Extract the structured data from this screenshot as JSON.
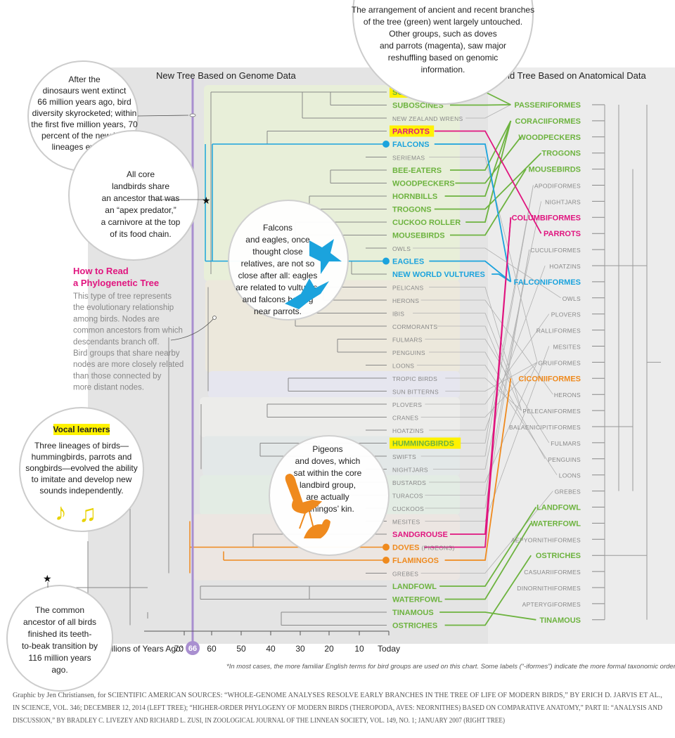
{
  "headers": {
    "new_tree": "New Tree Based on Genome Data",
    "old_tree": "Old Tree Based on Anatomical Data"
  },
  "callouts": {
    "top": [
      "The arrangement of ancient and recent branches",
      "of the tree (green) went largely untouched.",
      "Other groups, such as doves",
      "and parrots (magenta), saw major",
      "reshuffling based on genomic",
      "information."
    ],
    "dinosaurs": [
      "After the",
      "dinosaurs went extinct",
      "66 million years ago, bird",
      "diversity skyrocketed; within",
      "the first five million years, 70",
      "percent of the new bird",
      "lineages evolved."
    ],
    "landbirds": [
      "All core",
      "landbirds share",
      "an ancestor that was",
      "an “apex predator,”",
      "a carnivore at the top",
      "of its food chain."
    ],
    "falcons": [
      "Falcons",
      "and eagles, once",
      "thought close",
      "relatives, are not so",
      "close after all: eagles",
      "are related to vultures,",
      "and falcons belong",
      "near parrots."
    ],
    "pigeons": [
      "Pigeons",
      "and doves, which",
      "sat within the core",
      "landbird group,",
      "are actually",
      "flamingos’ kin."
    ],
    "howto_title": [
      "How to Read",
      "a Phylogenetic Tree"
    ],
    "howto_body": [
      "This type of tree represents",
      "the evolutionary relationship",
      "among birds. Nodes are",
      "common ancestors from which",
      "descendants branch off.",
      "Bird groups that share nearby",
      "nodes are more closely related",
      "than those connected by",
      "more distant nodes."
    ],
    "vocal_title": "Vocal learners",
    "vocal_body": [
      "Three lineages of birds—",
      "hummingbirds, parrots and",
      "songbirds—evolved the ability",
      "to imitate and develop new",
      "sounds independently."
    ],
    "common": [
      "The common",
      "ancestor of all birds",
      "finished its teeth-",
      "to-beak transition by",
      "116 million years",
      "ago."
    ]
  },
  "axis": {
    "title": "Millions of Years Ago:",
    "ticks": [
      "70",
      "60",
      "50",
      "40",
      "30",
      "20",
      "10",
      "Today"
    ],
    "marker": "66"
  },
  "footnote": "*In most cases, the more familiar English terms for bird groups are used on this chart. Some labels (“-iformes”) indicate the more formal taxonomic order.",
  "credits": {
    "line1": "Graphic by Jen Christiansen, for SCIENTIFIC AMERICAN   SOURCES: “WHOLE-GENOME ANALYSES RESOLVE EARLY BRANCHES IN THE TREE OF LIFE OF MODERN BIRDS,” BY ERICH D. JARVIS ET AL.,",
    "line2": "IN SCIENCE, VOL. 346; DECEMBER 12, 2014 (LEFT TREE); “HIGHER-ORDER PHYLOGENY OF MODERN BIRDS (THEROPODA, AVES: NEORNITHES) BASED ON COMPARATIVE ANATOMY,” PART II: “ANALYSIS AND",
    "line3": "DISCUSSION,” BY BRADLEY C. LIVEZEY AND RICHARD L. ZUSI, IN ZOOLOGICAL JOURNAL OF THE LINNEAN SOCIETY, VOL. 149, NO. 1; JANUARY 2007 (RIGHT TREE)"
  },
  "colors": {
    "green": "#6db33f",
    "magenta": "#e0157f",
    "blue": "#1ba3dd",
    "orange": "#ef8a1e",
    "gray": "#888888",
    "yellow": "#fff200",
    "purple": "#a98fd0"
  },
  "new_tree": [
    {
      "label": "SONGBIRDS★",
      "color": "green",
      "hl": true
    },
    {
      "label": "SUBOSCINES",
      "color": "green"
    },
    {
      "label": "NEW ZEALAND WRENS",
      "color": "gray"
    },
    {
      "label": "PARROTS",
      "color": "magenta",
      "hl": true
    },
    {
      "label": "FALCONS",
      "color": "blue"
    },
    {
      "label": "SERIEMAS",
      "color": "gray"
    },
    {
      "label": "BEE-EATERS",
      "color": "green"
    },
    {
      "label": "WOODPECKERS",
      "color": "green"
    },
    {
      "label": "HORNBILLS",
      "color": "green"
    },
    {
      "label": "TROGONS",
      "color": "green"
    },
    {
      "label": "CUCKOO ROLLER",
      "color": "green"
    },
    {
      "label": "MOUSEBIRDS",
      "color": "green"
    },
    {
      "label": "OWLS",
      "color": "gray"
    },
    {
      "label": "EAGLES",
      "color": "blue"
    },
    {
      "label": "NEW WORLD VULTURES",
      "color": "blue"
    },
    {
      "label": "PELICANS",
      "color": "gray"
    },
    {
      "label": "HERONS",
      "color": "gray"
    },
    {
      "label": "IBIS",
      "color": "gray"
    },
    {
      "label": "CORMORANTS",
      "color": "gray"
    },
    {
      "label": "FULMARS",
      "color": "gray"
    },
    {
      "label": "PENGUINS",
      "color": "gray"
    },
    {
      "label": "LOONS",
      "color": "gray"
    },
    {
      "label": "TROPIC BIRDS",
      "color": "gray"
    },
    {
      "label": "SUN BITTERNS",
      "color": "gray"
    },
    {
      "label": "PLOVERS",
      "color": "gray"
    },
    {
      "label": "CRANES",
      "color": "gray"
    },
    {
      "label": "HOATZINS",
      "color": "gray"
    },
    {
      "label": "HUMMINGBIRDS",
      "color": "green",
      "hl": true
    },
    {
      "label": "SWIFTS",
      "color": "gray"
    },
    {
      "label": "NIGHTJARS",
      "color": "gray"
    },
    {
      "label": "BUSTARDS",
      "color": "gray"
    },
    {
      "label": "TURACOS",
      "color": "gray"
    },
    {
      "label": "CUCKOOS",
      "color": "gray"
    },
    {
      "label": "MESITES",
      "color": "gray"
    },
    {
      "label": "SANDGROUSE",
      "color": "magenta"
    },
    {
      "label": "DOVES",
      "color": "orange",
      "suffix": "(PIGEONS)"
    },
    {
      "label": "FLAMINGOS",
      "color": "orange"
    },
    {
      "label": "GREBES",
      "color": "gray"
    },
    {
      "label": "LANDFOWL",
      "color": "green"
    },
    {
      "label": "WATERFOWL",
      "color": "green"
    },
    {
      "label": "TINAMOUS",
      "color": "green"
    },
    {
      "label": "OSTRICHES",
      "color": "green"
    }
  ],
  "old_tree": [
    {
      "label": "PASSERIFORMES",
      "color": "green"
    },
    {
      "label": "CORACIIFORMES",
      "color": "green"
    },
    {
      "label": "WOODPECKERS",
      "color": "green"
    },
    {
      "label": "TROGONS",
      "color": "green"
    },
    {
      "label": "MOUSEBIRDS",
      "color": "green"
    },
    {
      "label": "APODIFORMES",
      "color": "gray"
    },
    {
      "label": "NIGHTJARS",
      "color": "gray"
    },
    {
      "label": "COLUMBIFORMES",
      "color": "magenta"
    },
    {
      "label": "PARROTS",
      "color": "magenta"
    },
    {
      "label": "CUCULIFORMES",
      "color": "gray"
    },
    {
      "label": "HOATZINS",
      "color": "gray"
    },
    {
      "label": "FALCONIFORMES",
      "color": "blue"
    },
    {
      "label": "OWLS",
      "color": "gray"
    },
    {
      "label": "PLOVERS",
      "color": "gray"
    },
    {
      "label": "RALLIFORMES",
      "color": "gray"
    },
    {
      "label": "MESITES",
      "color": "gray"
    },
    {
      "label": "GRUIFORMES",
      "color": "gray"
    },
    {
      "label": "CICONIIFORMES",
      "color": "orange"
    },
    {
      "label": "HERONS",
      "color": "gray"
    },
    {
      "label": "PELECANIFORMES",
      "color": "gray"
    },
    {
      "label": "BALAENICIPITIFORMES",
      "color": "gray"
    },
    {
      "label": "FULMARS",
      "color": "gray"
    },
    {
      "label": "PENGUINS",
      "color": "gray"
    },
    {
      "label": "LOONS",
      "color": "gray"
    },
    {
      "label": "GREBES",
      "color": "gray"
    },
    {
      "label": "LANDFOWL",
      "color": "green"
    },
    {
      "label": "WATERFOWL",
      "color": "green"
    },
    {
      "label": "AEPYORNITHIFORMES",
      "color": "gray"
    },
    {
      "label": "OSTRICHES",
      "color": "green"
    },
    {
      "label": "CASUARIIFORMES",
      "color": "gray"
    },
    {
      "label": "DINORNITHIFORMES",
      "color": "gray"
    },
    {
      "label": "APTERYGIFORMES",
      "color": "gray"
    },
    {
      "label": "TINAMOUS",
      "color": "green"
    }
  ],
  "links": [
    {
      "from": "SONGBIRDS★",
      "to": "PASSERIFORMES",
      "color": "green"
    },
    {
      "from": "SUBOSCINES",
      "to": "PASSERIFORMES",
      "color": "green"
    },
    {
      "from": "BEE-EATERS",
      "to": "CORACIIFORMES",
      "color": "green"
    },
    {
      "from": "HORNBILLS",
      "to": "CORACIIFORMES",
      "color": "green"
    },
    {
      "from": "CUCKOO ROLLER",
      "to": "CORACIIFORMES",
      "color": "green"
    },
    {
      "from": "WOODPECKERS",
      "to": "WOODPECKERS",
      "color": "green"
    },
    {
      "from": "TROGONS",
      "to": "TROGONS",
      "color": "green"
    },
    {
      "from": "MOUSEBIRDS",
      "to": "MOUSEBIRDS",
      "color": "green"
    },
    {
      "from": "PARROTS",
      "to": "PARROTS",
      "color": "magenta"
    },
    {
      "from": "SANDGROUSE",
      "to": "COLUMBIFORMES",
      "color": "magenta"
    },
    {
      "from": "FALCONS",
      "to": "FALCONIFORMES",
      "color": "blue"
    },
    {
      "from": "EAGLES",
      "to": "FALCONIFORMES",
      "color": "blue"
    },
    {
      "from": "NEW WORLD VULTURES",
      "to": "FALCONIFORMES",
      "color": "blue"
    },
    {
      "from": "FLAMINGOS",
      "to": "CICONIIFORMES",
      "color": "orange"
    },
    {
      "from": "LANDFOWL",
      "to": "LANDFOWL",
      "color": "green"
    },
    {
      "from": "WATERFOWL",
      "to": "WATERFOWL",
      "color": "green"
    },
    {
      "from": "TINAMOUS",
      "to": "TINAMOUS",
      "color": "green"
    },
    {
      "from": "OSTRICHES",
      "to": "OSTRICHES",
      "color": "green"
    },
    {
      "from": "OWLS",
      "to": "OWLS",
      "color": "gray"
    },
    {
      "from": "PELICANS",
      "to": "PELECANIFORMES",
      "color": "gray"
    },
    {
      "from": "HERONS",
      "to": "HERONS",
      "color": "gray"
    },
    {
      "from": "IBIS",
      "to": "CICONIIFORMES",
      "color": "gray"
    },
    {
      "from": "CORMORANTS",
      "to": "PELECANIFORMES",
      "color": "gray"
    },
    {
      "from": "FULMARS",
      "to": "FULMARS",
      "color": "gray"
    },
    {
      "from": "PENGUINS",
      "to": "PENGUINS",
      "color": "gray"
    },
    {
      "from": "LOONS",
      "to": "LOONS",
      "color": "gray"
    },
    {
      "from": "TROPIC BIRDS",
      "to": "PELECANIFORMES",
      "color": "gray"
    },
    {
      "from": "SUN BITTERNS",
      "to": "GRUIFORMES",
      "color": "gray"
    },
    {
      "from": "PLOVERS",
      "to": "PLOVERS",
      "color": "gray"
    },
    {
      "from": "CRANES",
      "to": "GRUIFORMES",
      "color": "gray"
    },
    {
      "from": "HOATZINS",
      "to": "HOATZINS",
      "color": "gray"
    },
    {
      "from": "HUMMINGBIRDS",
      "to": "APODIFORMES",
      "color": "gray"
    },
    {
      "from": "SWIFTS",
      "to": "APODIFORMES",
      "color": "gray"
    },
    {
      "from": "NIGHTJARS",
      "to": "NIGHTJARS",
      "color": "gray"
    },
    {
      "from": "BUSTARDS",
      "to": "GRUIFORMES",
      "color": "gray"
    },
    {
      "from": "TURACOS",
      "to": "CUCULIFORMES",
      "color": "gray"
    },
    {
      "from": "CUCKOOS",
      "to": "CUCULIFORMES",
      "color": "gray"
    },
    {
      "from": "MESITES",
      "to": "MESITES",
      "color": "gray"
    },
    {
      "from": "GREBES",
      "to": "GREBES",
      "color": "gray"
    },
    {
      "from": "SERIEMAS",
      "to": "GRUIFORMES",
      "color": "gray"
    },
    {
      "from": "NEW ZEALAND WRENS",
      "to": "PASSERIFORMES",
      "color": "gray"
    },
    {
      "from": "DOVES",
      "to": "COLUMBIFORMES",
      "color": "magenta"
    }
  ]
}
